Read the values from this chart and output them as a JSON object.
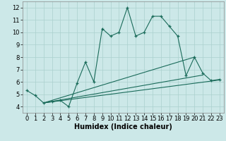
{
  "xlabel": "Humidex (Indice chaleur)",
  "bg_color": "#cce8e8",
  "grid_color": "#aad0ce",
  "line_color": "#1a6b5a",
  "xlim": [
    -0.5,
    23.5
  ],
  "ylim": [
    3.5,
    12.5
  ],
  "xticks": [
    0,
    1,
    2,
    3,
    4,
    5,
    6,
    7,
    8,
    9,
    10,
    11,
    12,
    13,
    14,
    15,
    16,
    17,
    18,
    19,
    20,
    21,
    22,
    23
  ],
  "yticks": [
    4,
    5,
    6,
    7,
    8,
    9,
    10,
    11,
    12
  ],
  "line1_x": [
    0,
    1,
    2,
    3,
    4,
    5,
    6,
    7,
    8,
    9,
    10,
    11,
    12,
    13,
    14,
    15,
    16,
    17,
    18,
    19,
    20,
    21,
    22,
    23
  ],
  "line1_y": [
    5.3,
    4.9,
    4.3,
    4.4,
    4.5,
    4.0,
    5.9,
    7.6,
    6.0,
    10.3,
    9.7,
    10.0,
    12.0,
    9.7,
    10.0,
    11.3,
    11.3,
    10.5,
    9.7,
    6.5,
    8.0,
    6.7,
    6.1,
    6.2
  ],
  "line2_x": [
    2,
    23
  ],
  "line2_y": [
    4.3,
    6.15
  ],
  "line3_x": [
    2,
    21
  ],
  "line3_y": [
    4.3,
    6.55
  ],
  "line4_x": [
    2,
    20
  ],
  "line4_y": [
    4.3,
    8.0
  ],
  "font_size_xlabel": 7,
  "font_size_ticks": 6
}
